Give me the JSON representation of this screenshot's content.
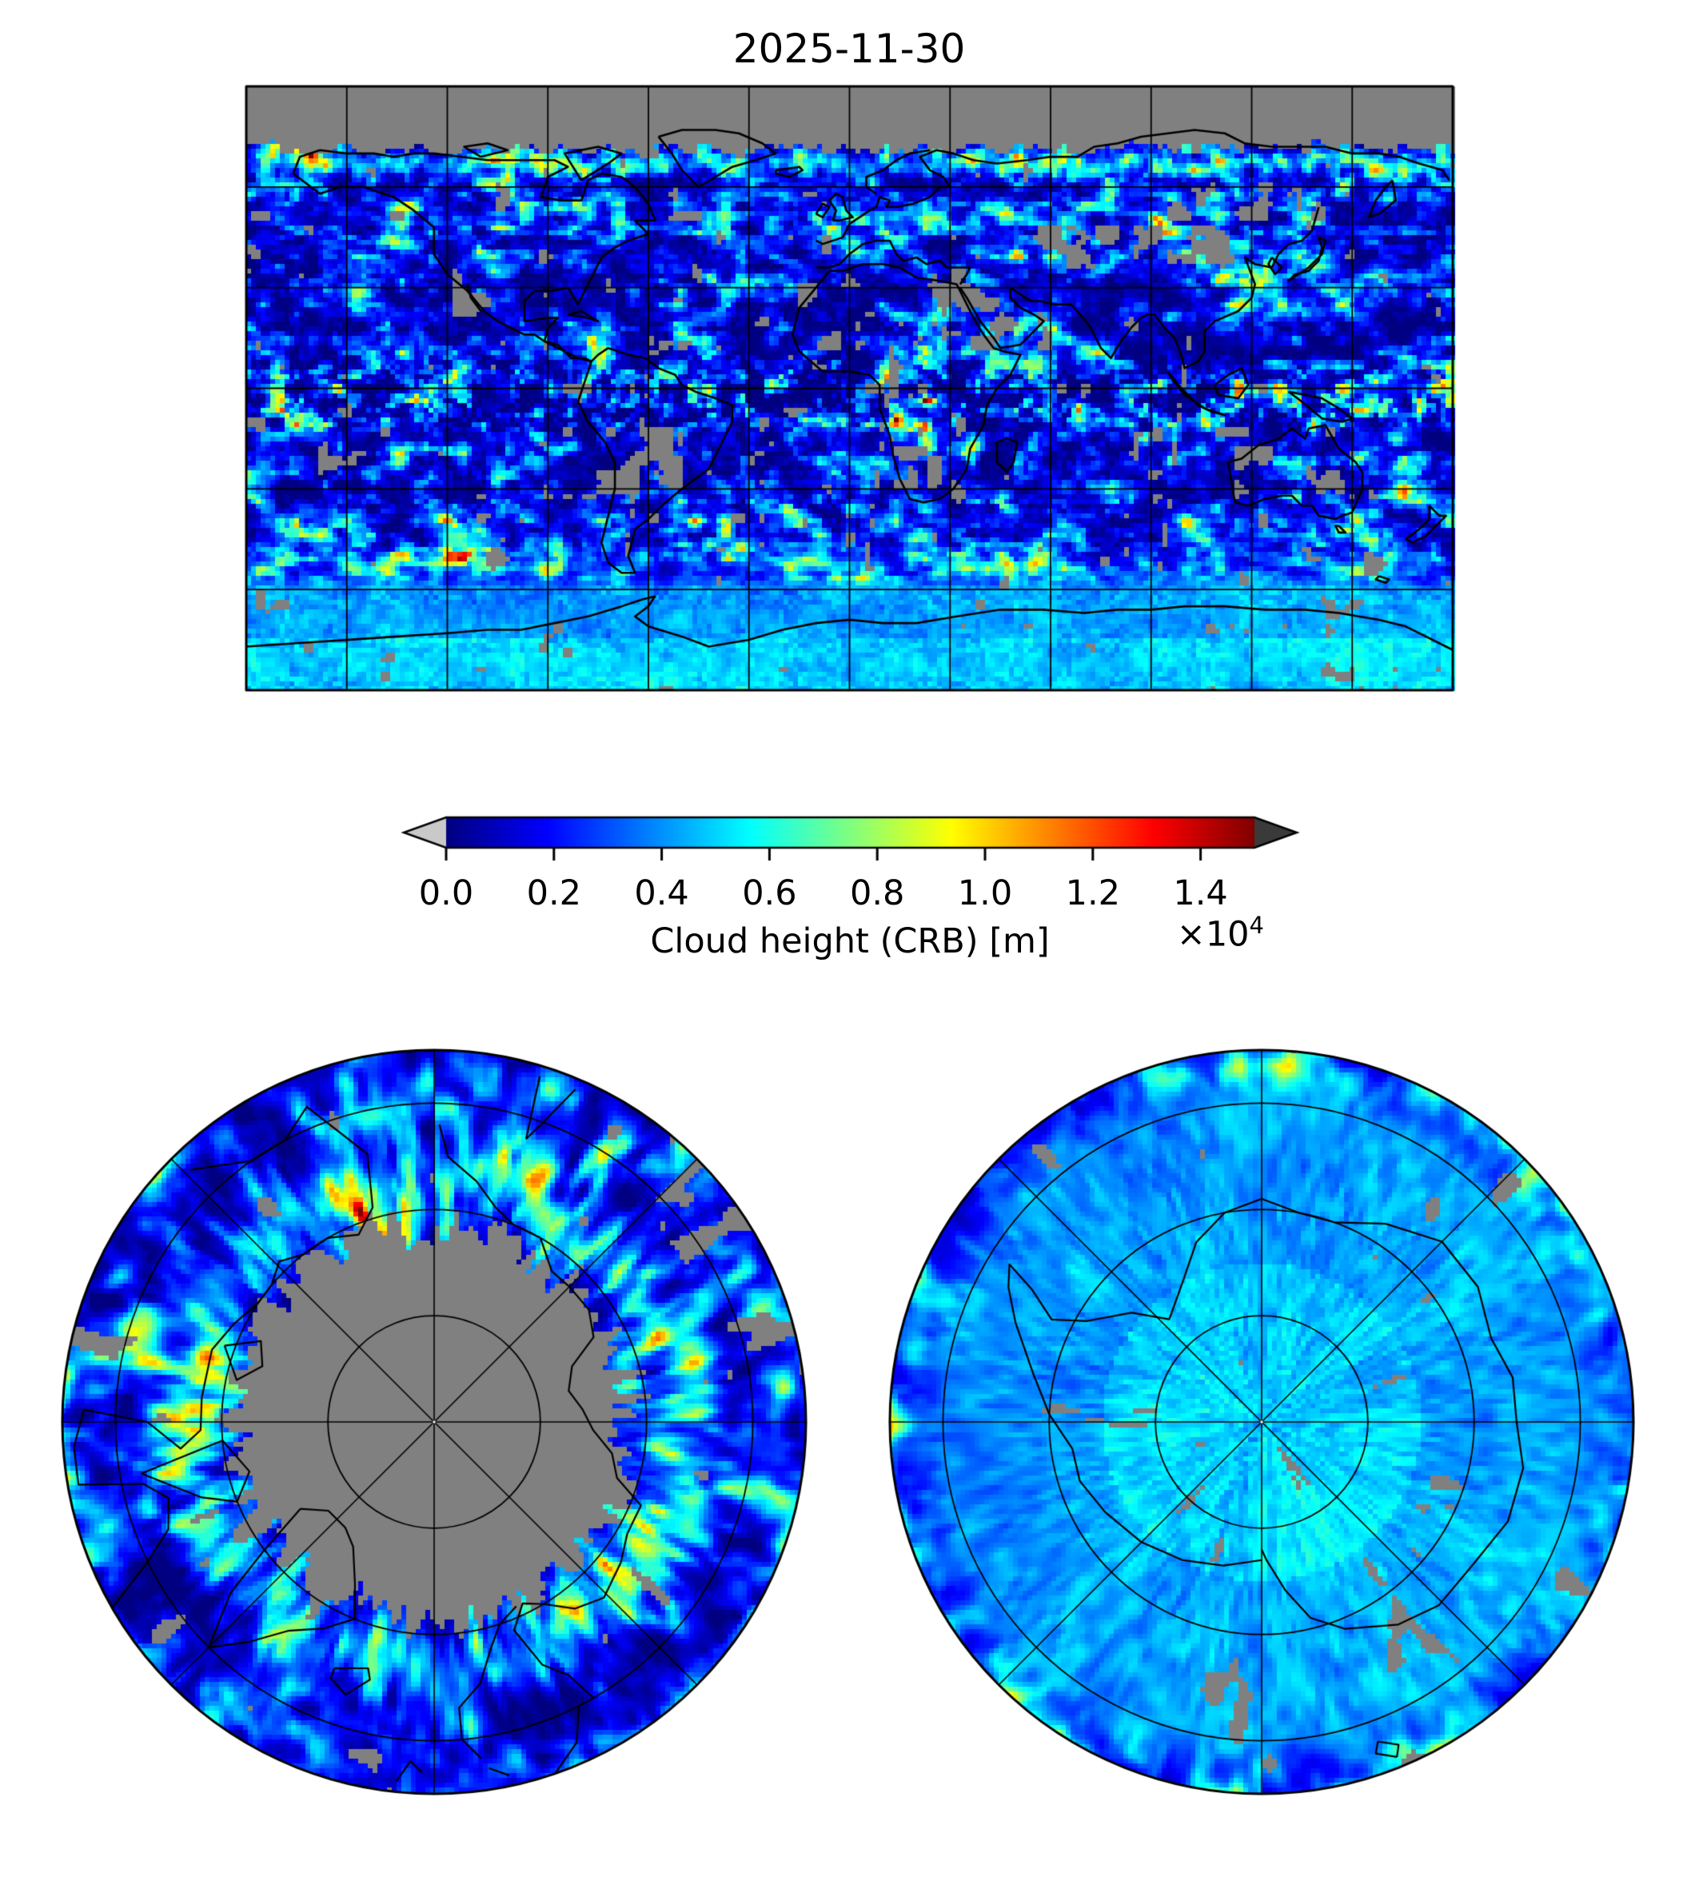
{
  "figure": {
    "title": "2025-11-30",
    "background": "#ffffff"
  },
  "colorbar": {
    "label": "Cloud height (CRB) [m]",
    "tick_labels": [
      "0.0",
      "0.2",
      "0.4",
      "0.6",
      "0.8",
      "1.0",
      "1.2",
      "1.4"
    ],
    "tick_values": [
      0.0,
      0.2,
      0.4,
      0.6,
      0.8,
      1.0,
      1.2,
      1.4
    ],
    "offset_base": "×10",
    "offset_exponent": "4",
    "vmin": 0.0,
    "vmax": 1.5,
    "colormap": "jet",
    "under_arrow_color": "#c9c9c9",
    "over_arrow_color": "#3a3a3a",
    "outline_color": "#000000"
  },
  "map_colors": {
    "missing_data": "#808080",
    "coastline": "#000000",
    "gridline": "#000000",
    "frame": "#000000",
    "pole_dot": "#ffffff"
  },
  "chart_data": {
    "type": "heatmap",
    "title": "2025-11-30",
    "value_label": "Cloud height (CRB) [m]",
    "colormap": "jet",
    "value_range_m": [
      0,
      15000
    ],
    "colorbar_ticks_scaled": [
      0.0,
      0.2,
      0.4,
      0.6,
      0.8,
      1.0,
      1.2,
      1.4
    ],
    "colorbar_scale_note": "tick values are in units of 10^4 m",
    "missing_data_color": "#808080",
    "under_color": "#c9c9c9",
    "over_color": "#3a3a3a",
    "panels": [
      {
        "id": "global",
        "projection": "equirectangular",
        "lon_range": [
          -180,
          180
        ],
        "lat_range": [
          -90,
          90
        ],
        "gridline_spacing_deg": 30,
        "notes": "Mostly low cloud heights (dark blue) over oceans; cyan-green streaks in midlatitude storm tracks and along the ITCZ; yellow-orange convective spots over tropical Africa, the Maritime Continent and northern Australia; solid gray no-data band poleward of about 68-72N (polar night) with a bright cyan band just south of it; scattered gray no-data patches over the Sahara, Arabia, central Asia, Australia and other deserts; smooth pale blue over Antarctica."
      },
      {
        "id": "north-polar",
        "projection": "azimuthal, North Pole at center, lon 0 pointing down",
        "outer_lat": 55,
        "latitude_circles": [
          80,
          70,
          60
        ],
        "meridian_spacing_deg": 45,
        "notes": "Ragged gray no-data cap covering the pole to roughly 70-75N; bright cyan-green ring of cloud near the cap edge; coastlines of Greenland, Iceland, Scandinavia, Siberia and the Canadian Arctic; scattered gray patches over land at mid latitudes."
      },
      {
        "id": "south-polar",
        "projection": "azimuthal, South Pole at center, lon 0 pointing up",
        "outer_lat": -55,
        "latitude_circles": [
          -80,
          -70,
          -60
        ],
        "meridian_spacing_deg": 45,
        "notes": "Fully sunlit: smooth pale blue cloud field over the Antarctic interior, darker blue ocean ring with cyan cloud bands and streaks; Antarctica coastline visible around the center; only a few small gray no-data patches."
      }
    ]
  }
}
